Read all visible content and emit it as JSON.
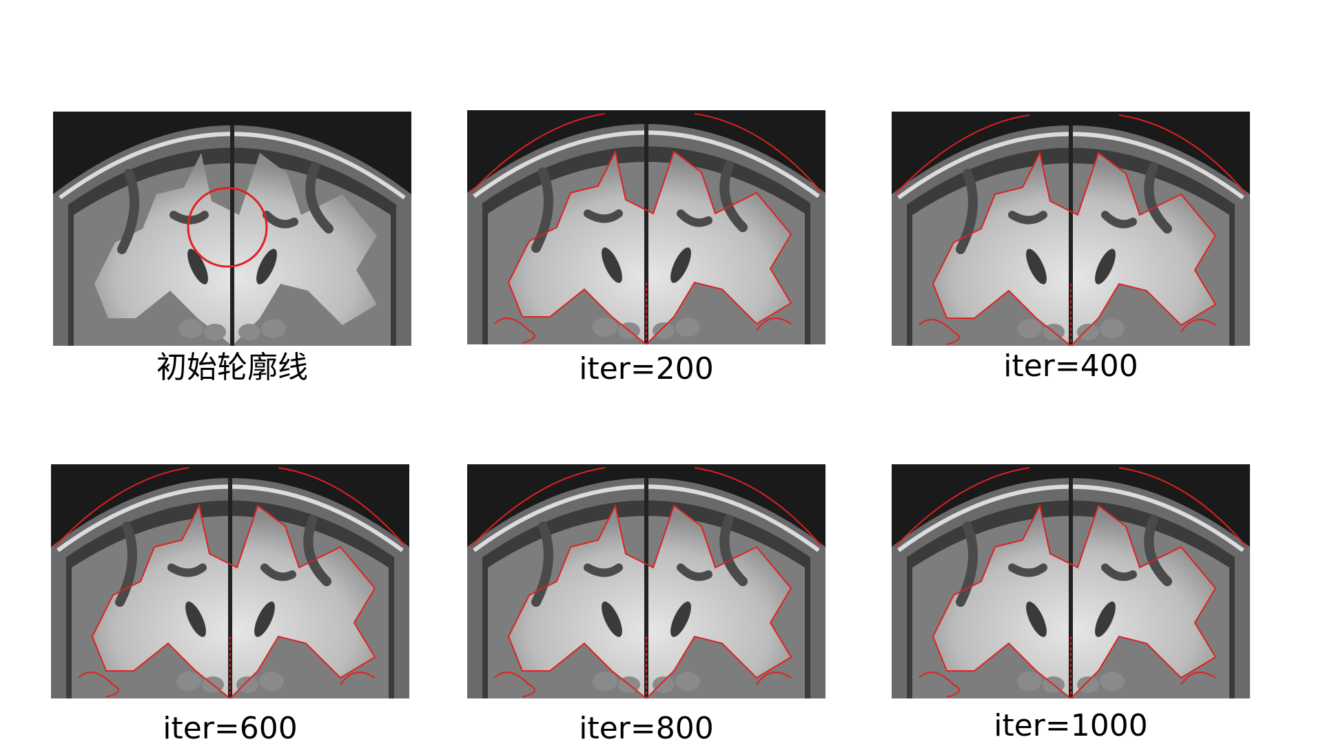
{
  "panels": [
    {
      "caption": "初始轮廓线"
    },
    {
      "caption": "iter=200"
    },
    {
      "caption": "iter=400"
    },
    {
      "caption": "iter=600"
    },
    {
      "caption": "iter=800"
    },
    {
      "caption": "iter=1000"
    }
  ],
  "colors": {
    "contour": "#e02020",
    "background": "#141414"
  }
}
